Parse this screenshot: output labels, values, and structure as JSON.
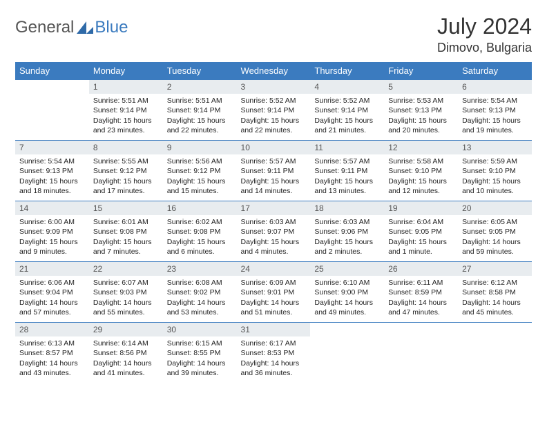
{
  "brand": {
    "part1": "General",
    "part2": "Blue"
  },
  "title": "July 2024",
  "location": "Dimovo, Bulgaria",
  "colors": {
    "header_bg": "#3b7bbf",
    "daynum_bg": "#e8ecef",
    "rule": "#3b7bbf"
  },
  "weekdays": [
    "Sunday",
    "Monday",
    "Tuesday",
    "Wednesday",
    "Thursday",
    "Friday",
    "Saturday"
  ],
  "weeks": [
    [
      {
        "n": "",
        "sr": "",
        "ss": "",
        "dl": "",
        "empty": true
      },
      {
        "n": "1",
        "sr": "Sunrise: 5:51 AM",
        "ss": "Sunset: 9:14 PM",
        "dl": "Daylight: 15 hours and 23 minutes."
      },
      {
        "n": "2",
        "sr": "Sunrise: 5:51 AM",
        "ss": "Sunset: 9:14 PM",
        "dl": "Daylight: 15 hours and 22 minutes."
      },
      {
        "n": "3",
        "sr": "Sunrise: 5:52 AM",
        "ss": "Sunset: 9:14 PM",
        "dl": "Daylight: 15 hours and 22 minutes."
      },
      {
        "n": "4",
        "sr": "Sunrise: 5:52 AM",
        "ss": "Sunset: 9:14 PM",
        "dl": "Daylight: 15 hours and 21 minutes."
      },
      {
        "n": "5",
        "sr": "Sunrise: 5:53 AM",
        "ss": "Sunset: 9:13 PM",
        "dl": "Daylight: 15 hours and 20 minutes."
      },
      {
        "n": "6",
        "sr": "Sunrise: 5:54 AM",
        "ss": "Sunset: 9:13 PM",
        "dl": "Daylight: 15 hours and 19 minutes."
      }
    ],
    [
      {
        "n": "7",
        "sr": "Sunrise: 5:54 AM",
        "ss": "Sunset: 9:13 PM",
        "dl": "Daylight: 15 hours and 18 minutes."
      },
      {
        "n": "8",
        "sr": "Sunrise: 5:55 AM",
        "ss": "Sunset: 9:12 PM",
        "dl": "Daylight: 15 hours and 17 minutes."
      },
      {
        "n": "9",
        "sr": "Sunrise: 5:56 AM",
        "ss": "Sunset: 9:12 PM",
        "dl": "Daylight: 15 hours and 15 minutes."
      },
      {
        "n": "10",
        "sr": "Sunrise: 5:57 AM",
        "ss": "Sunset: 9:11 PM",
        "dl": "Daylight: 15 hours and 14 minutes."
      },
      {
        "n": "11",
        "sr": "Sunrise: 5:57 AM",
        "ss": "Sunset: 9:11 PM",
        "dl": "Daylight: 15 hours and 13 minutes."
      },
      {
        "n": "12",
        "sr": "Sunrise: 5:58 AM",
        "ss": "Sunset: 9:10 PM",
        "dl": "Daylight: 15 hours and 12 minutes."
      },
      {
        "n": "13",
        "sr": "Sunrise: 5:59 AM",
        "ss": "Sunset: 9:10 PM",
        "dl": "Daylight: 15 hours and 10 minutes."
      }
    ],
    [
      {
        "n": "14",
        "sr": "Sunrise: 6:00 AM",
        "ss": "Sunset: 9:09 PM",
        "dl": "Daylight: 15 hours and 9 minutes."
      },
      {
        "n": "15",
        "sr": "Sunrise: 6:01 AM",
        "ss": "Sunset: 9:08 PM",
        "dl": "Daylight: 15 hours and 7 minutes."
      },
      {
        "n": "16",
        "sr": "Sunrise: 6:02 AM",
        "ss": "Sunset: 9:08 PM",
        "dl": "Daylight: 15 hours and 6 minutes."
      },
      {
        "n": "17",
        "sr": "Sunrise: 6:03 AM",
        "ss": "Sunset: 9:07 PM",
        "dl": "Daylight: 15 hours and 4 minutes."
      },
      {
        "n": "18",
        "sr": "Sunrise: 6:03 AM",
        "ss": "Sunset: 9:06 PM",
        "dl": "Daylight: 15 hours and 2 minutes."
      },
      {
        "n": "19",
        "sr": "Sunrise: 6:04 AM",
        "ss": "Sunset: 9:05 PM",
        "dl": "Daylight: 15 hours and 1 minute."
      },
      {
        "n": "20",
        "sr": "Sunrise: 6:05 AM",
        "ss": "Sunset: 9:05 PM",
        "dl": "Daylight: 14 hours and 59 minutes."
      }
    ],
    [
      {
        "n": "21",
        "sr": "Sunrise: 6:06 AM",
        "ss": "Sunset: 9:04 PM",
        "dl": "Daylight: 14 hours and 57 minutes."
      },
      {
        "n": "22",
        "sr": "Sunrise: 6:07 AM",
        "ss": "Sunset: 9:03 PM",
        "dl": "Daylight: 14 hours and 55 minutes."
      },
      {
        "n": "23",
        "sr": "Sunrise: 6:08 AM",
        "ss": "Sunset: 9:02 PM",
        "dl": "Daylight: 14 hours and 53 minutes."
      },
      {
        "n": "24",
        "sr": "Sunrise: 6:09 AM",
        "ss": "Sunset: 9:01 PM",
        "dl": "Daylight: 14 hours and 51 minutes."
      },
      {
        "n": "25",
        "sr": "Sunrise: 6:10 AM",
        "ss": "Sunset: 9:00 PM",
        "dl": "Daylight: 14 hours and 49 minutes."
      },
      {
        "n": "26",
        "sr": "Sunrise: 6:11 AM",
        "ss": "Sunset: 8:59 PM",
        "dl": "Daylight: 14 hours and 47 minutes."
      },
      {
        "n": "27",
        "sr": "Sunrise: 6:12 AM",
        "ss": "Sunset: 8:58 PM",
        "dl": "Daylight: 14 hours and 45 minutes."
      }
    ],
    [
      {
        "n": "28",
        "sr": "Sunrise: 6:13 AM",
        "ss": "Sunset: 8:57 PM",
        "dl": "Daylight: 14 hours and 43 minutes."
      },
      {
        "n": "29",
        "sr": "Sunrise: 6:14 AM",
        "ss": "Sunset: 8:56 PM",
        "dl": "Daylight: 14 hours and 41 minutes."
      },
      {
        "n": "30",
        "sr": "Sunrise: 6:15 AM",
        "ss": "Sunset: 8:55 PM",
        "dl": "Daylight: 14 hours and 39 minutes."
      },
      {
        "n": "31",
        "sr": "Sunrise: 6:17 AM",
        "ss": "Sunset: 8:53 PM",
        "dl": "Daylight: 14 hours and 36 minutes."
      },
      {
        "n": "",
        "sr": "",
        "ss": "",
        "dl": "",
        "empty": true
      },
      {
        "n": "",
        "sr": "",
        "ss": "",
        "dl": "",
        "empty": true
      },
      {
        "n": "",
        "sr": "",
        "ss": "",
        "dl": "",
        "empty": true
      }
    ]
  ]
}
